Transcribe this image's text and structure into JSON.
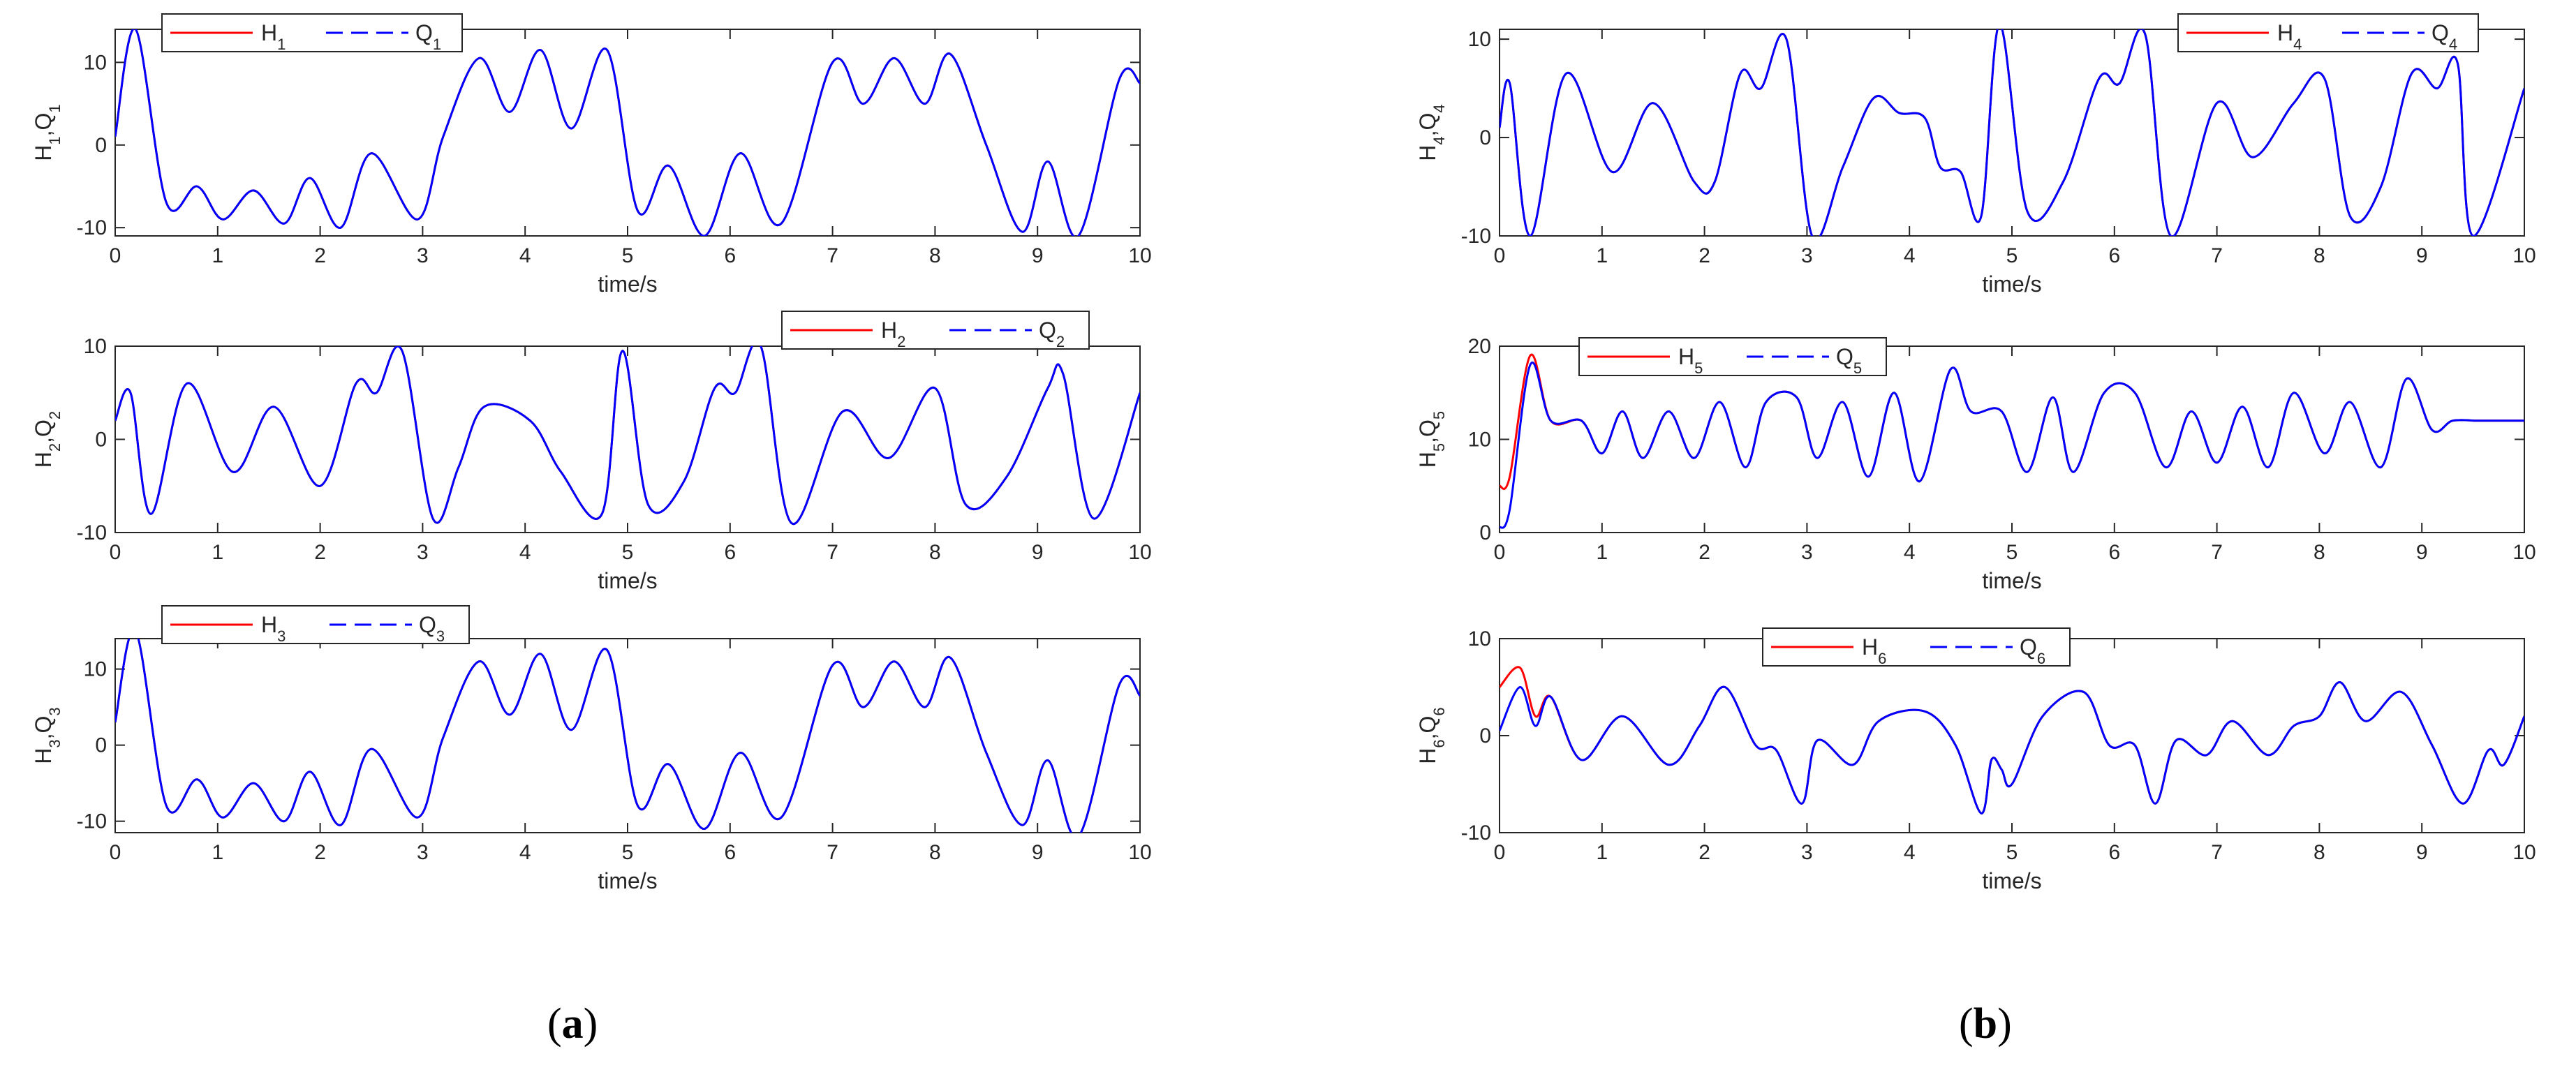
{
  "panel_labels": {
    "a": {
      "open": "(",
      "letter": "a",
      "close": ")"
    },
    "b": {
      "open": "(",
      "letter": "b",
      "close": ")"
    }
  },
  "colors": {
    "H": "#ff0000",
    "Q": "#0000ff",
    "axes": "#262626"
  },
  "chart_data": [
    {
      "id": "p1",
      "type": "line",
      "xlabel": "time/s",
      "ylabel": {
        "a": "H",
        "a_sub": "1",
        "sep": ",",
        "b": "Q",
        "b_sub": "1"
      },
      "xlim": [
        0,
        10
      ],
      "ylim": [
        -11,
        14
      ],
      "xticks": [
        "0",
        "1",
        "2",
        "3",
        "4",
        "5",
        "6",
        "7",
        "8",
        "9",
        "10"
      ],
      "yticks": [
        {
          "v": 10,
          "t": "10"
        },
        {
          "v": 0,
          "t": "0"
        },
        {
          "v": -10,
          "t": "-10"
        }
      ],
      "legend": {
        "loc": "top-left",
        "h": "H",
        "h_sub": "1",
        "q": "Q",
        "q_sub": "1"
      },
      "x": [
        0,
        0.2,
        0.5,
        0.8,
        1.05,
        1.35,
        1.65,
        1.9,
        2.2,
        2.5,
        2.95,
        3.2,
        3.55,
        3.85,
        4.15,
        4.45,
        4.8,
        5.1,
        5.4,
        5.75,
        6.1,
        6.5,
        7.0,
        7.3,
        7.6,
        7.9,
        8.15,
        8.5,
        8.85,
        9.1,
        9.4,
        9.8,
        10.0
      ],
      "series": [
        {
          "name": "H1",
          "style": "solid",
          "values": [
            1,
            14,
            -7,
            -5,
            -9,
            -5.5,
            -9.5,
            -4,
            -10,
            -1,
            -9,
            1,
            10.5,
            4,
            11.5,
            2,
            11.5,
            -8,
            -2.5,
            -11,
            -1,
            -9.5,
            10,
            5,
            10.5,
            5,
            11,
            0,
            -10.5,
            -2,
            -11,
            8,
            7.5
          ]
        },
        {
          "name": "Q1",
          "style": "dashed",
          "values": [
            1,
            14,
            -7,
            -5,
            -9,
            -5.5,
            -9.5,
            -4,
            -10,
            -1,
            -9,
            1,
            10.5,
            4,
            11.5,
            2,
            11.5,
            -8,
            -2.5,
            -11,
            -1,
            -9.5,
            10,
            5,
            10.5,
            5,
            11,
            0,
            -10.5,
            -2,
            -11,
            8,
            7.5
          ]
        }
      ]
    },
    {
      "id": "p2",
      "type": "line",
      "xlabel": "time/s",
      "ylabel": {
        "a": "H",
        "a_sub": "2",
        "sep": ",",
        "b": "Q",
        "b_sub": "2"
      },
      "xlim": [
        0,
        10
      ],
      "ylim": [
        -10,
        10
      ],
      "xticks": [
        "0",
        "1",
        "2",
        "3",
        "4",
        "5",
        "6",
        "7",
        "8",
        "9",
        "10"
      ],
      "yticks": [
        {
          "v": 10,
          "t": "10"
        },
        {
          "v": 0,
          "t": "0"
        },
        {
          "v": -10,
          "t": "-10"
        }
      ],
      "legend": {
        "loc": "top-right",
        "h": "H",
        "h_sub": "2",
        "q": "Q",
        "q_sub": "2"
      },
      "x": [
        0,
        0.15,
        0.35,
        0.7,
        1.15,
        1.55,
        2.0,
        2.35,
        2.55,
        2.8,
        3.1,
        3.35,
        3.6,
        4.05,
        4.35,
        4.75,
        4.95,
        5.2,
        5.55,
        5.85,
        6.05,
        6.3,
        6.6,
        7.1,
        7.55,
        8.0,
        8.3,
        8.7,
        9.1,
        9.25,
        9.55,
        10.0
      ],
      "series": [
        {
          "name": "H2",
          "style": "solid",
          "values": [
            2,
            5,
            -8,
            6,
            -3.5,
            3.5,
            -5,
            6,
            5,
            9.5,
            -8.5,
            -3,
            3.5,
            2,
            -3.5,
            -8,
            9.5,
            -7,
            -4.5,
            5.5,
            5,
            10,
            -9,
            3,
            -2,
            5.5,
            -7,
            -4,
            5.5,
            7,
            -8.5,
            5
          ]
        },
        {
          "name": "Q2",
          "style": "dashed",
          "values": [
            2,
            5,
            -8,
            6,
            -3.5,
            3.5,
            -5,
            6,
            5,
            9.5,
            -8.5,
            -3,
            3.5,
            2,
            -3.5,
            -8,
            9.5,
            -7,
            -4.5,
            5.5,
            5,
            10,
            -9,
            3,
            -2,
            5.5,
            -7,
            -4,
            5.5,
            7,
            -8.5,
            5
          ]
        }
      ]
    },
    {
      "id": "p3",
      "type": "line",
      "xlabel": "time/s",
      "ylabel": {
        "a": "H",
        "a_sub": "3",
        "sep": ",",
        "b": "Q",
        "b_sub": "3"
      },
      "xlim": [
        0,
        10
      ],
      "ylim": [
        -11.5,
        14
      ],
      "xticks": [
        "0",
        "1",
        "2",
        "3",
        "4",
        "5",
        "6",
        "7",
        "8",
        "9",
        "10"
      ],
      "yticks": [
        {
          "v": 10,
          "t": "10"
        },
        {
          "v": 0,
          "t": "0"
        },
        {
          "v": -10,
          "t": "-10"
        }
      ],
      "legend": {
        "loc": "top-left",
        "h": "H",
        "h_sub": "3",
        "q": "Q",
        "q_sub": "3"
      },
      "x": [
        0,
        0.2,
        0.5,
        0.8,
        1.05,
        1.35,
        1.65,
        1.9,
        2.2,
        2.5,
        2.95,
        3.2,
        3.55,
        3.85,
        4.15,
        4.45,
        4.8,
        5.1,
        5.4,
        5.75,
        6.1,
        6.5,
        7.0,
        7.3,
        7.6,
        7.9,
        8.15,
        8.5,
        8.85,
        9.1,
        9.4,
        9.8,
        10.0
      ],
      "series": [
        {
          "name": "H3",
          "style": "solid",
          "values": [
            3,
            15,
            -8,
            -4.5,
            -9.5,
            -5,
            -10,
            -3.5,
            -10.5,
            -0.5,
            -9.5,
            1,
            11,
            4,
            12,
            2,
            12.5,
            -8,
            -2.5,
            -11,
            -1,
            -9.5,
            10.5,
            5,
            11,
            5,
            11.5,
            -1,
            -10.5,
            -2,
            -12,
            8,
            6.5
          ]
        },
        {
          "name": "Q3",
          "style": "dashed",
          "values": [
            3,
            15,
            -8,
            -4.5,
            -9.5,
            -5,
            -10,
            -3.5,
            -10.5,
            -0.5,
            -9.5,
            1,
            11,
            4,
            12,
            2,
            12.5,
            -8,
            -2.5,
            -11,
            -1,
            -9.5,
            10.5,
            5,
            11,
            5,
            11.5,
            -1,
            -10.5,
            -2,
            -12,
            8,
            6.5
          ]
        }
      ]
    },
    {
      "id": "p4",
      "type": "line",
      "xlabel": "time/s",
      "ylabel": {
        "a": "H",
        "a_sub": "4",
        "sep": ",",
        "b": "Q",
        "b_sub": "4"
      },
      "xlim": [
        0,
        10
      ],
      "ylim": [
        -10,
        11
      ],
      "xticks": [
        "0",
        "1",
        "2",
        "3",
        "4",
        "5",
        "6",
        "7",
        "8",
        "9",
        "10"
      ],
      "yticks": [
        {
          "v": 10,
          "t": "10"
        },
        {
          "v": 0,
          "t": "0"
        },
        {
          "v": -10,
          "t": "-10"
        }
      ],
      "legend": {
        "loc": "top-right",
        "h": "H",
        "h_sub": "4",
        "q": "Q",
        "q_sub": "4"
      },
      "x": [
        0,
        0.1,
        0.3,
        0.65,
        1.1,
        1.5,
        1.9,
        2.1,
        2.35,
        2.55,
        2.8,
        3.05,
        3.35,
        3.65,
        3.9,
        4.15,
        4.3,
        4.5,
        4.7,
        4.88,
        5.15,
        5.5,
        5.85,
        6.05,
        6.3,
        6.55,
        7.0,
        7.35,
        7.75,
        8.05,
        8.3,
        8.6,
        8.9,
        9.15,
        9.35,
        9.5,
        10.0
      ],
      "series": [
        {
          "name": "H4",
          "style": "solid",
          "values": [
            1,
            5.5,
            -10,
            6.5,
            -3.5,
            3.5,
            -4.5,
            -4.5,
            6.5,
            5,
            10,
            -10,
            -3,
            4,
            2.5,
            2,
            -3,
            -3.5,
            -8,
            11.5,
            -7.5,
            -4.5,
            6,
            5.5,
            10.5,
            -10,
            3.5,
            -2,
            3.5,
            6,
            -8,
            -5,
            6.5,
            5,
            7.5,
            -10,
            5
          ]
        },
        {
          "name": "Q4",
          "style": "dashed",
          "values": [
            1,
            5.5,
            -10,
            6.5,
            -3.5,
            3.5,
            -4.5,
            -4.5,
            6.5,
            5,
            10,
            -10,
            -3,
            4,
            2.5,
            2,
            -3,
            -3.5,
            -8,
            11.5,
            -7.5,
            -4.5,
            6,
            5.5,
            10.5,
            -10,
            3.5,
            -2,
            3.5,
            6,
            -8,
            -5,
            6.5,
            5,
            7.5,
            -10,
            5
          ]
        }
      ]
    },
    {
      "id": "p5",
      "type": "line",
      "xlabel": "time/s",
      "ylabel": {
        "a": "H",
        "a_sub": "5",
        "sep": ",",
        "b": "Q",
        "b_sub": "5"
      },
      "xlim": [
        0,
        10
      ],
      "ylim": [
        0,
        20
      ],
      "xticks": [
        "0",
        "1",
        "2",
        "3",
        "4",
        "5",
        "6",
        "7",
        "8",
        "9",
        "10"
      ],
      "yticks": [
        {
          "v": 20,
          "t": "20"
        },
        {
          "v": 10,
          "t": "10"
        },
        {
          "v": 0,
          "t": "0"
        }
      ],
      "legend": {
        "loc": "top-left",
        "h": "H",
        "h_sub": "5",
        "q": "Q",
        "q_sub": "5"
      },
      "x": [
        0,
        0.1,
        0.3,
        0.5,
        0.8,
        1.0,
        1.2,
        1.4,
        1.65,
        1.9,
        2.15,
        2.4,
        2.6,
        2.9,
        3.1,
        3.35,
        3.6,
        3.85,
        4.1,
        4.4,
        4.6,
        4.9,
        5.15,
        5.4,
        5.6,
        5.9,
        6.2,
        6.5,
        6.75,
        7.0,
        7.25,
        7.5,
        7.75,
        8.05,
        8.3,
        8.6,
        8.85,
        9.1,
        9.3,
        9.55,
        9.75,
        10.0
      ],
      "series": [
        {
          "name": "H5",
          "style": "solid",
          "values": [
            5,
            6,
            19,
            12,
            12,
            8.5,
            13,
            8,
            13,
            8,
            14,
            7,
            14,
            14.5,
            8,
            14,
            6,
            15,
            5.5,
            17.5,
            13,
            13,
            6.5,
            14.5,
            6.5,
            15,
            15,
            7,
            13,
            7.5,
            13.5,
            7,
            15,
            8.5,
            14,
            7,
            16.5,
            11,
            12,
            12,
            12,
            12
          ]
        },
        {
          "name": "Q5",
          "style": "dashed",
          "values": [
            0.5,
            2.5,
            18,
            12,
            12,
            8.5,
            13,
            8,
            13,
            8,
            14,
            7,
            14,
            14.5,
            8,
            14,
            6,
            15,
            5.5,
            17.5,
            13,
            13,
            6.5,
            14.5,
            6.5,
            15,
            15,
            7,
            13,
            7.5,
            13.5,
            7,
            15,
            8.5,
            14,
            7,
            16.5,
            11,
            12,
            12,
            12,
            12
          ]
        }
      ]
    },
    {
      "id": "p6",
      "type": "line",
      "xlabel": "time/s",
      "ylabel": {
        "a": "H",
        "a_sub": "6",
        "sep": ",",
        "b": "Q",
        "b_sub": "6"
      },
      "xlim": [
        0,
        10
      ],
      "ylim": [
        -10,
        10
      ],
      "xticks": [
        "0",
        "1",
        "2",
        "3",
        "4",
        "5",
        "6",
        "7",
        "8",
        "9",
        "10"
      ],
      "yticks": [
        {
          "v": 10,
          "t": "10"
        },
        {
          "v": 0,
          "t": "0"
        },
        {
          "v": -10,
          "t": "-10"
        }
      ],
      "legend": {
        "loc": "top-center",
        "h": "H",
        "h_sub": "6",
        "q": "Q",
        "q_sub": "6"
      },
      "x": [
        0,
        0.2,
        0.35,
        0.5,
        0.8,
        1.2,
        1.65,
        1.95,
        2.2,
        2.5,
        2.7,
        2.95,
        3.1,
        3.45,
        3.7,
        4.15,
        4.45,
        4.7,
        4.8,
        4.9,
        5.0,
        5.3,
        5.7,
        5.95,
        6.2,
        6.4,
        6.6,
        6.9,
        7.15,
        7.5,
        7.75,
        8.0,
        8.2,
        8.45,
        8.8,
        9.1,
        9.4,
        9.65,
        9.8,
        10.0
      ],
      "series": [
        {
          "name": "H6",
          "style": "solid",
          "values": [
            5,
            7,
            2,
            4,
            -2.5,
            2,
            -3,
            1,
            5,
            -1,
            -1.5,
            -7,
            -0.5,
            -3,
            1.5,
            2.5,
            -1,
            -8,
            -2.5,
            -3.5,
            -5,
            2,
            4.5,
            -1,
            -1,
            -7,
            -0.5,
            -2,
            1.5,
            -2,
            1,
            2,
            5.5,
            1.5,
            4.5,
            -1,
            -7,
            -1.5,
            -3,
            2
          ]
        },
        {
          "name": "Q6",
          "style": "dashed",
          "values": [
            0.5,
            5,
            1,
            4,
            -2.5,
            2,
            -3,
            1,
            5,
            -1,
            -1.5,
            -7,
            -0.5,
            -3,
            1.5,
            2.5,
            -1,
            -8,
            -2.5,
            -3.5,
            -5,
            2,
            4.5,
            -1,
            -1,
            -7,
            -0.5,
            -2,
            1.5,
            -2,
            1,
            2,
            5.5,
            1.5,
            4.5,
            -1,
            -7,
            -1.5,
            -3,
            2
          ]
        }
      ]
    }
  ]
}
